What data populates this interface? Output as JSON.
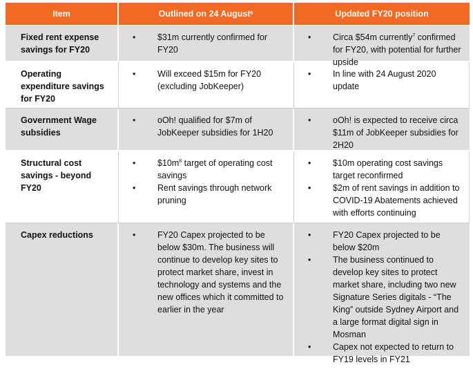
{
  "header": {
    "col1": "Item",
    "col2": "Outlined on 24 August",
    "col2_sup": "6",
    "col3": "Updated FY20 position"
  },
  "rows": [
    {
      "item": "Fixed rent expense savings for FY20",
      "outlined": [
        {
          "text": "$31m currently confirmed for FY20"
        }
      ],
      "updated": [
        {
          "pre": "Circa $54m currently",
          "sup": "7",
          "post": " confirmed for FY20, with potential for further upside"
        }
      ]
    },
    {
      "item": "Operating expenditure savings for FY20",
      "outlined": [
        {
          "text": "Will exceed $15m for FY20 (excluding JobKeeper)"
        }
      ],
      "updated": [
        {
          "text": "In line with 24 August 2020 update"
        }
      ]
    },
    {
      "item": "Government Wage subsidies",
      "outlined": [
        {
          "text": "oOh! qualified for $7m of JobKeeper subsidies for 1H20"
        }
      ],
      "updated": [
        {
          "text": "oOh! is expected to receive circa $11m of JobKeeper subsidies for 2H20"
        }
      ]
    },
    {
      "item": "Structural cost savings  - beyond FY20",
      "outlined": [
        {
          "pre": "$10m",
          "sup": "8",
          "post": " target of operating cost savings"
        },
        {
          "text": "Rent savings through network pruning"
        }
      ],
      "updated": [
        {
          "text": "$10m operating cost savings target reconfirmed"
        },
        {
          "text": "$2m of rent savings in addition to COVID-19 Abatements achieved with efforts continuing"
        }
      ]
    },
    {
      "item": "Capex reductions",
      "outlined": [
        {
          "text": "FY20 Capex projected to be below $30m.  The business will continue to develop key sites to protect market share, invest in technology and systems and the new offices which it committed to earlier in the year"
        }
      ],
      "updated": [
        {
          "text": "FY20 Capex projected to be below $20m"
        },
        {
          "text": "The business continued to develop key sites to protect market share, including two new Signature Series digitals -  “The King” outside Sydney Airport and a large format digital sign in Mosman"
        },
        {
          "text": "Capex not expected to return to FY19 levels in FY21"
        }
      ]
    }
  ]
}
